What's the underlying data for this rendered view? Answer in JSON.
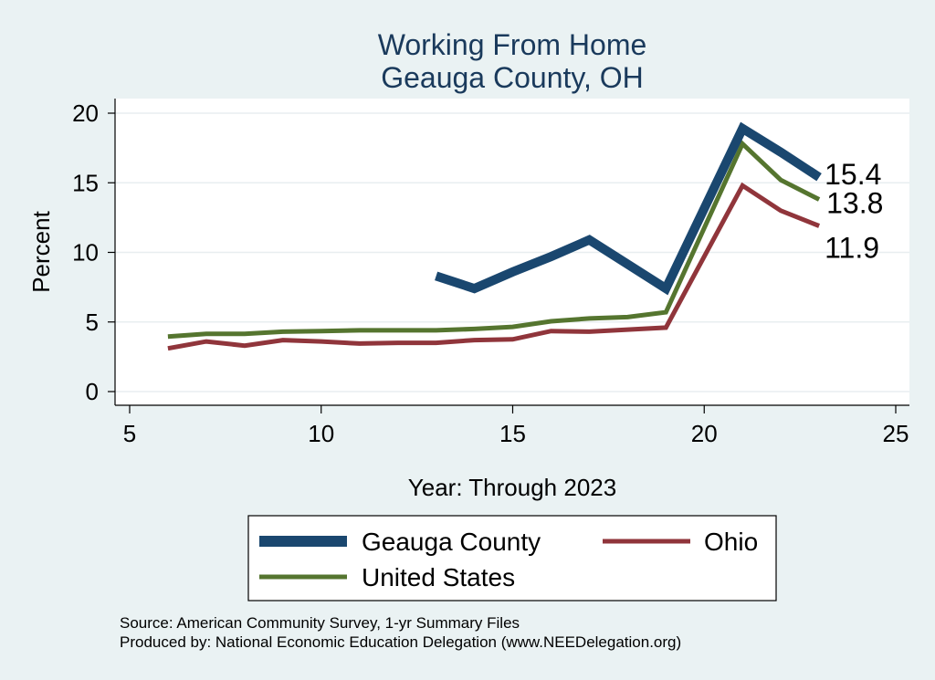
{
  "chart_data": {
    "type": "line",
    "title": [
      "Working From Home",
      "Geauga County, OH"
    ],
    "xlabel": "Year: Through 2023",
    "ylabel": "Percent",
    "xlim": [
      5,
      25
    ],
    "ylim": [
      0,
      20
    ],
    "x_ticks": [
      "5",
      "10",
      "15",
      "20",
      "25"
    ],
    "y_ticks": [
      "0",
      "5",
      "10",
      "15",
      "20"
    ],
    "grid": true,
    "legend_position": "bottom",
    "series": [
      {
        "name": "Geauga County",
        "color": "#1a476f",
        "points": [
          [
            13,
            8.3
          ],
          [
            14,
            7.4
          ],
          [
            15,
            8.6
          ],
          [
            16,
            9.7
          ],
          [
            17,
            10.9
          ],
          [
            19,
            7.4
          ],
          [
            21,
            18.9
          ],
          [
            22,
            17.2
          ],
          [
            23,
            15.4
          ]
        ]
      },
      {
        "name": "Ohio",
        "color": "#90353b",
        "points": [
          [
            6,
            3.1
          ],
          [
            7,
            3.6
          ],
          [
            8,
            3.3
          ],
          [
            9,
            3.7
          ],
          [
            10,
            3.6
          ],
          [
            11,
            3.45
          ],
          [
            12,
            3.5
          ],
          [
            13,
            3.5
          ],
          [
            14,
            3.7
          ],
          [
            15,
            3.75
          ],
          [
            16,
            4.35
          ],
          [
            17,
            4.3
          ],
          [
            18,
            4.45
          ],
          [
            19,
            4.6
          ],
          [
            21,
            14.8
          ],
          [
            22,
            13.0
          ],
          [
            23,
            11.9
          ]
        ]
      },
      {
        "name": "United States",
        "color": "#55752f",
        "points": [
          [
            6,
            3.95
          ],
          [
            7,
            4.15
          ],
          [
            8,
            4.15
          ],
          [
            9,
            4.3
          ],
          [
            10,
            4.35
          ],
          [
            11,
            4.4
          ],
          [
            12,
            4.4
          ],
          [
            13,
            4.4
          ],
          [
            14,
            4.5
          ],
          [
            15,
            4.65
          ],
          [
            16,
            5.05
          ],
          [
            17,
            5.25
          ],
          [
            18,
            5.35
          ],
          [
            19,
            5.7
          ],
          [
            21,
            17.8
          ],
          [
            22,
            15.2
          ],
          [
            23,
            13.8
          ]
        ]
      }
    ],
    "end_labels": [
      {
        "series": "Geauga County",
        "text": "15.4"
      },
      {
        "series": "United States",
        "text": "13.8"
      },
      {
        "series": "Ohio",
        "text": "11.9"
      }
    ]
  },
  "legend": {
    "items": [
      {
        "name": "Geauga County",
        "color": "#1a476f"
      },
      {
        "name": "Ohio",
        "color": "#90353b"
      },
      {
        "name": "United States",
        "color": "#55752f"
      }
    ]
  },
  "footer": {
    "source": "Source: American Community Survey, 1-yr Summary Files",
    "producer": "Produced by: National Economic Education Delegation (www.NEEDelegation.org)"
  }
}
